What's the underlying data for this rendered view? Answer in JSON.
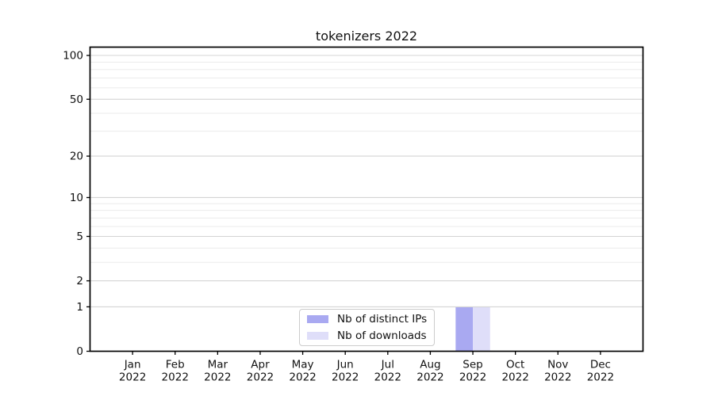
{
  "chart_data": {
    "type": "bar",
    "title": "tokenizers 2022",
    "categories": [
      "Jan\n2022",
      "Feb\n2022",
      "Mar\n2022",
      "Apr\n2022",
      "May\n2022",
      "Jun\n2022",
      "Jul\n2022",
      "Aug\n2022",
      "Sep\n2022",
      "Oct\n2022",
      "Nov\n2022",
      "Dec\n2022"
    ],
    "series": [
      {
        "name": "Nb of distinct IPs",
        "color": "#a9a9f1",
        "values": [
          0,
          0,
          0,
          0,
          0,
          0,
          0,
          0,
          1,
          0,
          0,
          0
        ]
      },
      {
        "name": "Nb of downloads",
        "color": "#dfdef9",
        "values": [
          0,
          0,
          0,
          0,
          0,
          0,
          0,
          0,
          1,
          0,
          0,
          0
        ]
      }
    ],
    "xlabel": "",
    "ylabel": "",
    "yscale": "log1p",
    "ylim": [
      0,
      114
    ],
    "yticks_major": [
      0,
      1,
      2,
      5,
      10,
      20,
      50,
      100
    ],
    "yticks_minor": [
      3,
      4,
      6,
      7,
      8,
      9,
      30,
      40,
      60,
      70,
      80,
      90
    ],
    "grid": "horizontal-major-and-minor",
    "legend_position": "lower center"
  },
  "colors": {
    "background": "#ffffff",
    "spine": "#000000",
    "major_grid": "#d4d4d4",
    "minor_grid": "#ebebeb",
    "tick": "#000000",
    "text": "#111111",
    "legend_border": "#cccccc"
  }
}
